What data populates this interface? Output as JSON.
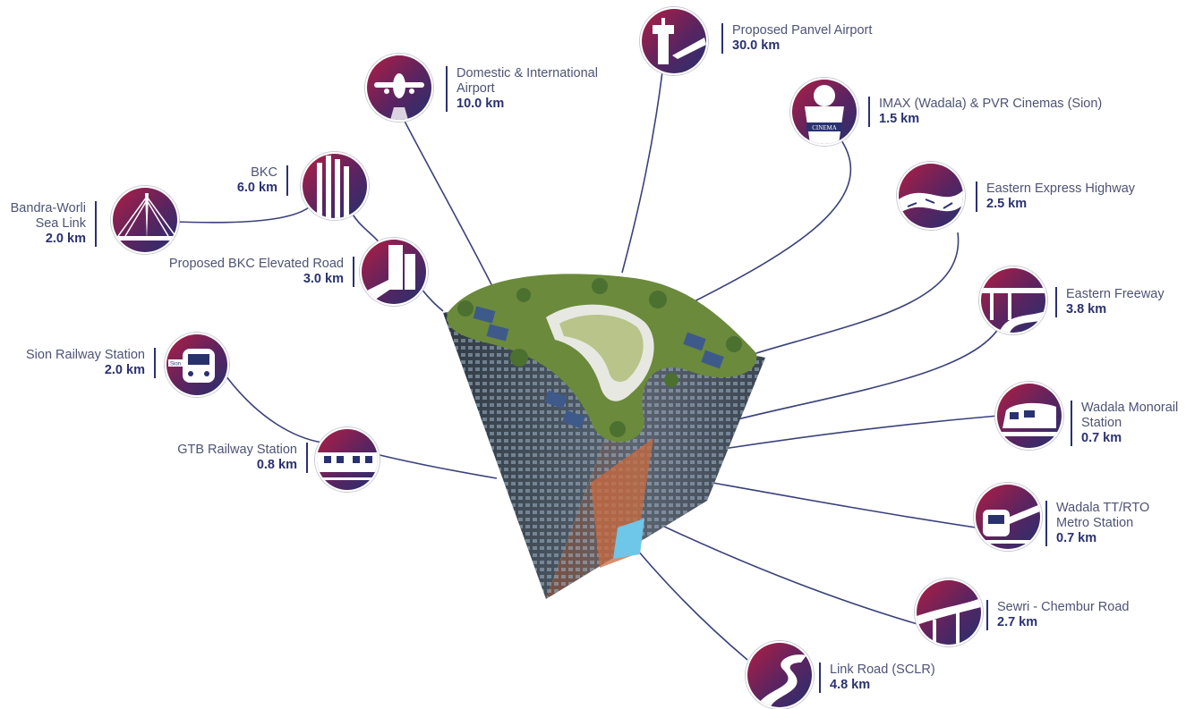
{
  "colors": {
    "navy": "#2a3170",
    "crimson": "#9b1e47",
    "line": "#3a4179",
    "text": "#4d5375"
  },
  "building": {
    "name": "building-illustration"
  },
  "locations": [
    {
      "id": "domestic-airport",
      "icon": "airplane-icon",
      "name": "Domestic & International\nAirport",
      "distance": "10.0  km"
    },
    {
      "id": "panvel-airport",
      "icon": "control-tower-icon",
      "name": "Proposed Panvel Airport",
      "distance": "30.0  km"
    },
    {
      "id": "imax-pvr",
      "icon": "cinema-icon",
      "name": "IMAX (Wadala) & PVR Cinemas (Sion)",
      "distance": "1.5  km"
    },
    {
      "id": "eastern-express-highway",
      "icon": "highway-icon",
      "name": "Eastern Express Highway",
      "distance": "2.5  km"
    },
    {
      "id": "eastern-freeway",
      "icon": "freeway-bridge-icon",
      "name": "Eastern Freeway",
      "distance": "3.8  km"
    },
    {
      "id": "wadala-monorail",
      "icon": "monorail-icon",
      "name": "Wadala Monorail\nStation",
      "distance": "0.7  km"
    },
    {
      "id": "wadala-metro",
      "icon": "metro-train-icon",
      "name": "Wadala TT/RTO\nMetro Station",
      "distance": "0.7  km"
    },
    {
      "id": "sewri-chembur",
      "icon": "flyover-road-icon",
      "name": "Sewri - Chembur Road",
      "distance": "2.7  km"
    },
    {
      "id": "link-road",
      "icon": "winding-road-icon",
      "name": "Link Road (SCLR)",
      "distance": "4.8  km"
    },
    {
      "id": "gtb-station",
      "icon": "local-train-icon",
      "name": "GTB Railway Station",
      "distance": "0.8  km"
    },
    {
      "id": "sion-station",
      "icon": "train-front-icon",
      "name": "Sion Railway Station",
      "distance": "2.0  km",
      "badge": "Sion"
    },
    {
      "id": "bkc-elevated",
      "icon": "elevated-road-icon",
      "name": "Proposed BKC Elevated Road",
      "distance": "3.0  km"
    },
    {
      "id": "bkc",
      "icon": "skyscraper-icon",
      "name": "BKC",
      "distance": "6.0  km"
    },
    {
      "id": "sea-link",
      "icon": "cable-bridge-icon",
      "name": "Bandra-Worli\nSea Link",
      "distance": "2.0  km"
    }
  ],
  "cinema_sign": "CINEMA"
}
